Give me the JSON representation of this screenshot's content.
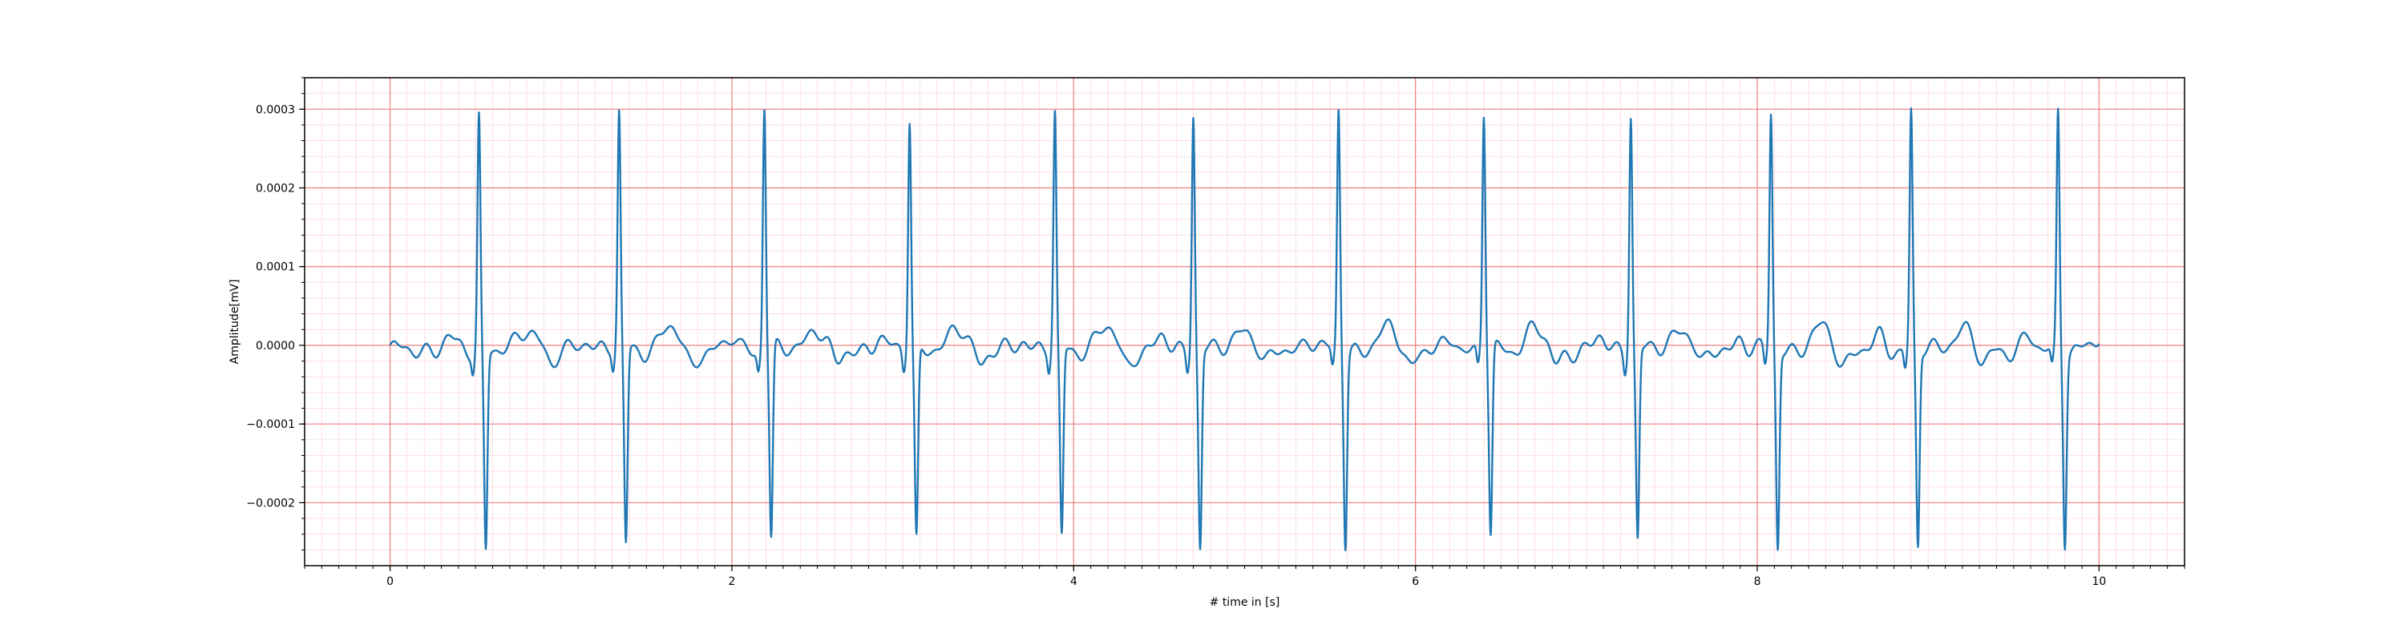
{
  "chart_data": {
    "type": "line",
    "title": "",
    "xlabel": "# time in [s]",
    "ylabel": "Amplitude[mV]",
    "xlim": [
      -0.5,
      10.5
    ],
    "ylim": [
      -0.00028,
      0.00034
    ],
    "x_major_ticks": [
      0,
      2,
      4,
      6,
      8,
      10
    ],
    "x_tick_labels": [
      "0",
      "2",
      "4",
      "6",
      "8",
      "10"
    ],
    "x_minor_step": 0.1,
    "y_major_ticks": [
      -0.0002,
      -0.0001,
      0.0,
      0.0001,
      0.0002,
      0.0003
    ],
    "y_tick_labels": [
      "−0.0002",
      "−0.0001",
      "0.0000",
      "0.0001",
      "0.0002",
      "0.0003"
    ],
    "y_minor_step": 2e-05,
    "grid": true,
    "grid_major_color": "#f08080",
    "grid_minor_color": "#ffd6e0",
    "line_color": "#1f77b4",
    "series": [
      {
        "sampling_interval_s": 0.02,
        "beats": [
          {
            "r_time": 0.52,
            "r_peak": 0.000298,
            "s_trough": -0.000252
          },
          {
            "r_time": 1.34,
            "r_peak": 0.0003,
            "s_trough": -0.000248
          },
          {
            "r_time": 2.19,
            "r_peak": 0.000312,
            "s_trough": -0.000242
          },
          {
            "r_time": 3.04,
            "r_peak": 0.000298,
            "s_trough": -0.00024
          },
          {
            "r_time": 3.89,
            "r_peak": 0.0003,
            "s_trough": -0.00024
          },
          {
            "r_time": 4.7,
            "r_peak": 0.000304,
            "s_trough": -0.00025
          },
          {
            "r_time": 5.55,
            "r_peak": 0.000306,
            "s_trough": -0.000244
          },
          {
            "r_time": 6.4,
            "r_peak": 0.000302,
            "s_trough": -0.000236
          },
          {
            "r_time": 7.26,
            "r_peak": 0.000304,
            "s_trough": -0.00024
          },
          {
            "r_time": 8.08,
            "r_peak": 0.0003,
            "s_trough": -0.00025
          },
          {
            "r_time": 8.9,
            "r_peak": 0.000304,
            "s_trough": -0.00025
          },
          {
            "r_time": 9.76,
            "r_peak": 0.000306,
            "s_trough": -0.000238
          }
        ],
        "t_wave_amplitude": 2.8e-05,
        "p_wave_amplitude": 1.6e-05,
        "time_range": [
          0,
          10
        ]
      }
    ]
  }
}
